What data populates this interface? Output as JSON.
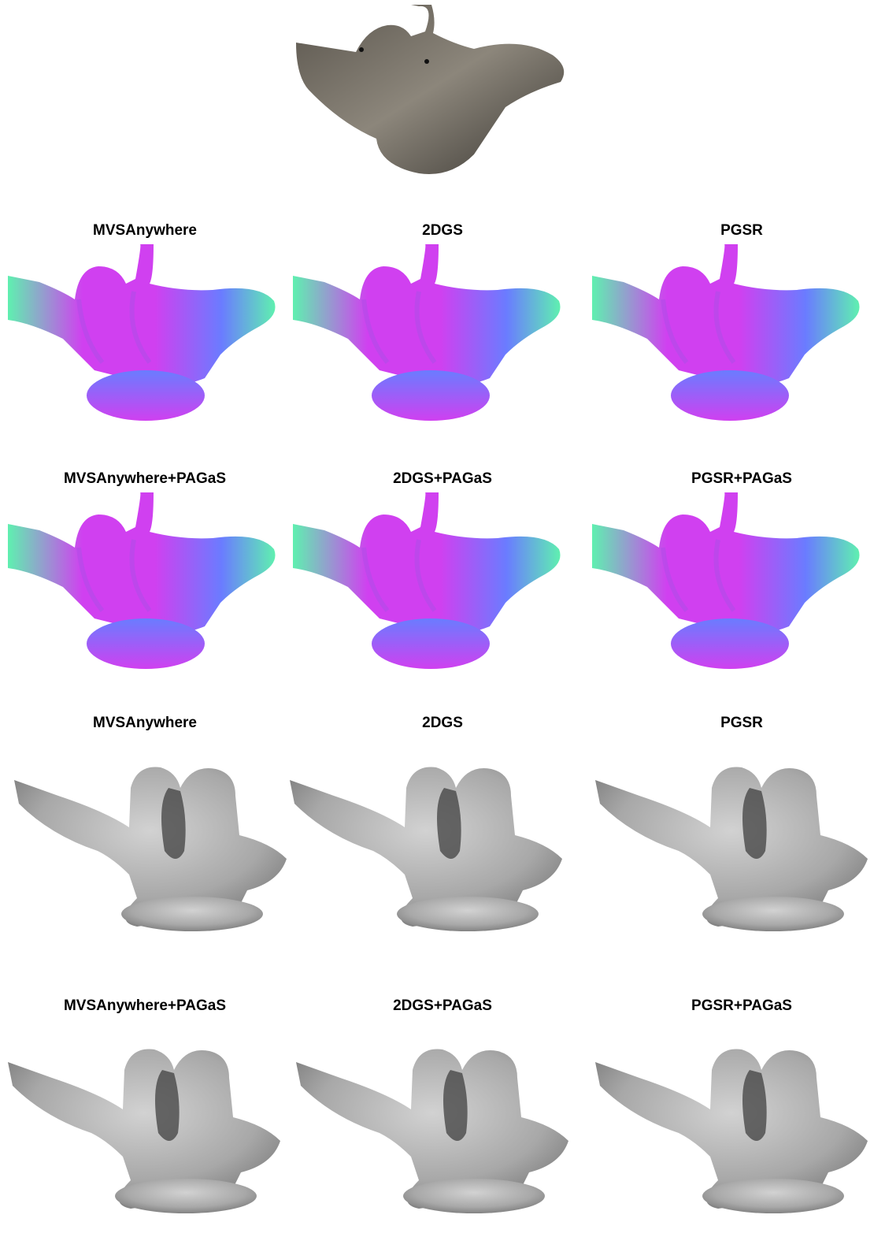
{
  "figure": {
    "reference_image": {
      "icon": "bird-sculpture-photo"
    },
    "normal_rows": [
      {
        "labels": [
          "MVSAnywhere",
          "2DGS",
          "PGSR"
        ],
        "render": "normal-map"
      },
      {
        "labels": [
          "MVSAnywhere+PAGaS",
          "2DGS+PAGaS",
          "PGSR+PAGaS"
        ],
        "render": "normal-map"
      }
    ],
    "mesh_rows": [
      {
        "labels": [
          "MVSAnywhere",
          "2DGS",
          "PGSR"
        ],
        "render": "gray-mesh"
      },
      {
        "labels": [
          "MVSAnywhere+PAGaS",
          "2DGS+PAGaS",
          "PGSR+PAGaS"
        ],
        "render": "gray-mesh"
      }
    ],
    "colors": {
      "normal_magenta": "#d040f0",
      "normal_blue": "#6a7cff",
      "normal_green": "#5ff0b0",
      "mesh_gray": "#a8a8a8",
      "photo_gray": "#7d776d"
    }
  }
}
